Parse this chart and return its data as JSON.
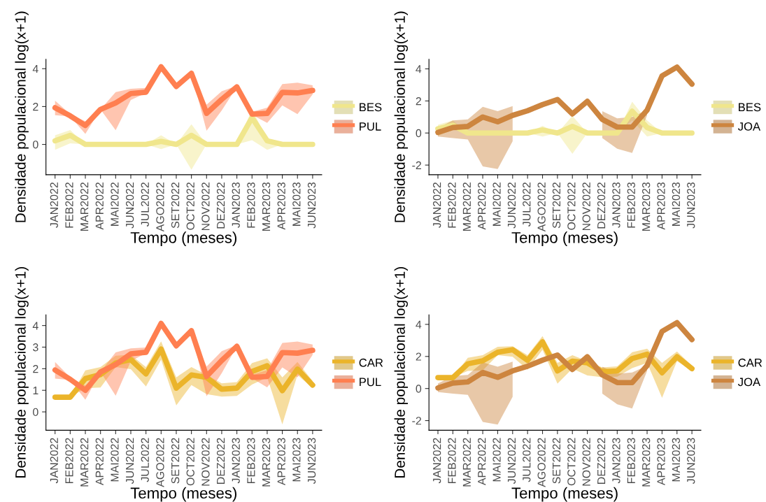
{
  "chart_data": [
    {
      "type": "line",
      "xlabel": "Tempo (meses)",
      "ylabel": "Densidade populacional log(x+1)",
      "categories": [
        "JAN2022",
        "FEB2022",
        "MAR2022",
        "APR2022",
        "MAI2022",
        "JUN2022",
        "JUL2022",
        "AGO2022",
        "SET2022",
        "OCT2022",
        "NOV2022",
        "DEZ2022",
        "JAN2023",
        "FEB2023",
        "MAR2023",
        "APR2023",
        "MAI2023",
        "JUN2023"
      ],
      "ylim": [
        -1.6,
        4.5
      ],
      "yticks": [
        0,
        2,
        4
      ],
      "grid": false,
      "legend": "right",
      "series": [
        {
          "name": "BES",
          "color": "#f0e68c",
          "values": [
            0.19,
            0.48,
            0,
            0,
            0,
            0,
            0,
            0.16,
            0,
            0.48,
            0,
            0,
            0,
            1.41,
            0.19,
            0,
            0,
            0
          ],
          "lower": [
            -0.28,
            0.06,
            0,
            0,
            0,
            0,
            0,
            -0.25,
            0,
            -1.34,
            0,
            0,
            0,
            0.22,
            -0.28,
            0,
            0,
            0
          ],
          "upper": [
            0.48,
            0.76,
            0,
            0,
            0,
            0,
            0,
            0.48,
            0,
            1.06,
            0,
            0,
            0,
            1.85,
            0.29,
            0,
            0,
            0
          ]
        },
        {
          "name": "PUL",
          "color": "#ff7f50",
          "values": [
            1.94,
            1.51,
            1.0,
            1.85,
            2.19,
            2.69,
            2.76,
            4.1,
            3.06,
            3.76,
            1.64,
            2.38,
            3.04,
            1.6,
            1.64,
            2.75,
            2.72,
            2.85
          ],
          "lower": [
            1.54,
            1.48,
            0.56,
            1.85,
            0.75,
            2.35,
            2.72,
            4.1,
            3.04,
            3.76,
            0.72,
            1.79,
            3.04,
            1.56,
            1.14,
            2.06,
            1.6,
            2.64
          ],
          "upper": [
            2.31,
            1.6,
            1.22,
            1.85,
            2.76,
            2.94,
            2.98,
            4.1,
            3.19,
            3.76,
            2.1,
            2.81,
            3.1,
            1.72,
            1.94,
            3.19,
            3.26,
            3.12
          ]
        }
      ]
    },
    {
      "type": "line",
      "xlabel": "Tempo (meses)",
      "ylabel": "Densidade populacional log(x+1)",
      "categories": [
        "JAN2022",
        "FEB2022",
        "MAR2022",
        "APR2022",
        "MAI2022",
        "JUN2022",
        "JUL2022",
        "AGO2022",
        "SET2022",
        "OCT2022",
        "NOV2022",
        "DEZ2022",
        "JAN2023",
        "FEB2023",
        "MAR2023",
        "APR2023",
        "MAI2023",
        "JUN2023"
      ],
      "ylim": [
        -2.6,
        4.6
      ],
      "yticks": [
        -2,
        0,
        2,
        4
      ],
      "grid": false,
      "legend": "right",
      "series": [
        {
          "name": "BES",
          "color": "#f0e68c",
          "values": [
            0.26,
            0.48,
            0,
            0,
            0,
            0,
            0,
            0.19,
            0,
            0.41,
            0,
            0,
            0,
            1.36,
            0.34,
            0,
            0,
            0
          ],
          "lower": [
            -0.18,
            0.19,
            0,
            0,
            0,
            0,
            0,
            -0.22,
            0,
            -1.3,
            0,
            0,
            0,
            0.78,
            -0.22,
            0,
            0,
            0
          ],
          "upper": [
            0.51,
            0.78,
            0,
            0,
            0,
            0,
            0,
            0.45,
            0,
            1.07,
            0,
            0,
            0,
            1.95,
            0.78,
            0,
            0,
            0
          ]
        },
        {
          "name": "JOA",
          "color": "#cd853f",
          "values": [
            0.04,
            0.34,
            0.41,
            1.0,
            0.7,
            1.1,
            1.39,
            1.77,
            2.09,
            1.19,
            1.98,
            0.85,
            0.37,
            0.37,
            1.43,
            3.56,
            4.11,
            3.05
          ],
          "lower": [
            -0.22,
            -0.32,
            -0.4,
            -2.08,
            -2.25,
            -0.51,
            null,
            null,
            null,
            null,
            null,
            -0.32,
            -0.98,
            -1.24,
            1.1,
            null,
            null,
            null
          ],
          "upper": [
            0.31,
            0.78,
            0.85,
            1.63,
            1.36,
            1.68,
            null,
            null,
            null,
            null,
            null,
            1.36,
            0.92,
            1.0,
            1.43,
            null,
            null,
            null
          ]
        }
      ]
    },
    {
      "type": "line",
      "xlabel": "Tempo (meses)",
      "ylabel": "Densidade populacional log(x+1)",
      "categories": [
        "JAN2022",
        "FEB2022",
        "MAR2022",
        "APR2022",
        "MAI2022",
        "JUN2022",
        "JUL2022",
        "AGO2022",
        "SET2022",
        "OCT2022",
        "NOV2022",
        "DEZ2022",
        "JAN2023",
        "FEB2023",
        "MAR2023",
        "APR2023",
        "MAI2023",
        "JUN2023"
      ],
      "ylim": [
        -0.85,
        4.5
      ],
      "yticks": [
        0,
        1,
        2,
        3,
        4
      ],
      "grid": false,
      "legend": "right",
      "series": [
        {
          "name": "CAR",
          "color": "#ebb42a",
          "values": [
            0.68,
            0.68,
            1.54,
            1.73,
            2.26,
            2.42,
            1.76,
            2.91,
            1.1,
            1.71,
            1.6,
            1.05,
            1.1,
            1.87,
            2.14,
            0.98,
            1.98,
            1.24
          ],
          "lower": [
            0.68,
            0.68,
            1.1,
            1.13,
            2.08,
            1.98,
            1.18,
            2.42,
            0.3,
            1.24,
            0.82,
            0.71,
            0.74,
            1.27,
            1.6,
            -0.58,
            1.71,
            1.1
          ],
          "upper": [
            0.68,
            0.68,
            1.92,
            2.08,
            2.6,
            2.64,
            2.08,
            3.27,
            1.6,
            2.08,
            1.71,
            1.32,
            1.38,
            2.26,
            2.48,
            1.6,
            2.31,
            1.43
          ]
        },
        {
          "name": "PUL",
          "color": "#ff7f50",
          "values": [
            1.94,
            1.51,
            1.0,
            1.85,
            2.19,
            2.69,
            2.76,
            4.1,
            3.06,
            3.76,
            1.64,
            2.38,
            3.04,
            1.6,
            1.64,
            2.75,
            2.72,
            2.85
          ],
          "lower": [
            1.54,
            1.48,
            0.56,
            1.85,
            0.75,
            2.35,
            2.72,
            4.1,
            3.04,
            3.76,
            0.72,
            1.79,
            3.04,
            1.56,
            1.14,
            2.06,
            1.6,
            2.64
          ],
          "upper": [
            2.31,
            1.6,
            1.22,
            1.85,
            2.76,
            2.94,
            2.98,
            4.1,
            3.19,
            3.76,
            2.1,
            2.81,
            3.1,
            1.72,
            1.94,
            3.19,
            3.26,
            3.12
          ]
        }
      ]
    },
    {
      "type": "line",
      "xlabel": "Tempo (meses)",
      "ylabel": "Densidade populacional log(x+1)",
      "categories": [
        "JAN2022",
        "FEB2022",
        "MAR2022",
        "APR2022",
        "MAI2022",
        "JUN2022",
        "JUL2022",
        "AGO2022",
        "SET2022",
        "OCT2022",
        "NOV2022",
        "DEZ2022",
        "JAN2023",
        "FEB2023",
        "MAR2023",
        "APR2023",
        "MAI2023",
        "JUN2023"
      ],
      "ylim": [
        -2.6,
        4.6
      ],
      "yticks": [
        -2,
        0,
        2,
        4
      ],
      "grid": false,
      "legend": "right",
      "series": [
        {
          "name": "CAR",
          "color": "#ebb42a",
          "values": [
            0.68,
            0.68,
            1.54,
            1.73,
            2.26,
            2.42,
            1.76,
            2.91,
            1.1,
            1.71,
            1.6,
            1.05,
            1.1,
            1.87,
            2.14,
            0.98,
            1.98,
            1.24
          ],
          "lower": [
            0.68,
            0.68,
            1.1,
            1.13,
            2.08,
            1.98,
            1.18,
            2.42,
            0.3,
            1.24,
            0.82,
            0.71,
            0.74,
            1.27,
            1.6,
            -0.58,
            1.71,
            1.1
          ],
          "upper": [
            0.68,
            0.68,
            1.92,
            2.08,
            2.6,
            2.64,
            2.08,
            3.27,
            1.6,
            2.08,
            1.71,
            1.32,
            1.38,
            2.26,
            2.48,
            1.6,
            2.31,
            1.43
          ]
        },
        {
          "name": "JOA",
          "color": "#cd853f",
          "values": [
            0.04,
            0.34,
            0.41,
            1.0,
            0.7,
            1.1,
            1.39,
            1.77,
            2.09,
            1.19,
            1.98,
            0.85,
            0.37,
            0.37,
            1.43,
            3.56,
            4.11,
            3.05
          ],
          "lower": [
            -0.22,
            -0.32,
            -0.4,
            -2.08,
            -2.25,
            -0.51,
            null,
            null,
            null,
            null,
            null,
            -0.32,
            -0.98,
            -1.24,
            1.1,
            null,
            null,
            null
          ],
          "upper": [
            0.31,
            0.78,
            0.85,
            1.63,
            1.36,
            1.68,
            null,
            null,
            null,
            null,
            null,
            1.36,
            0.92,
            1.0,
            1.43,
            null,
            null,
            null
          ]
        }
      ]
    }
  ]
}
